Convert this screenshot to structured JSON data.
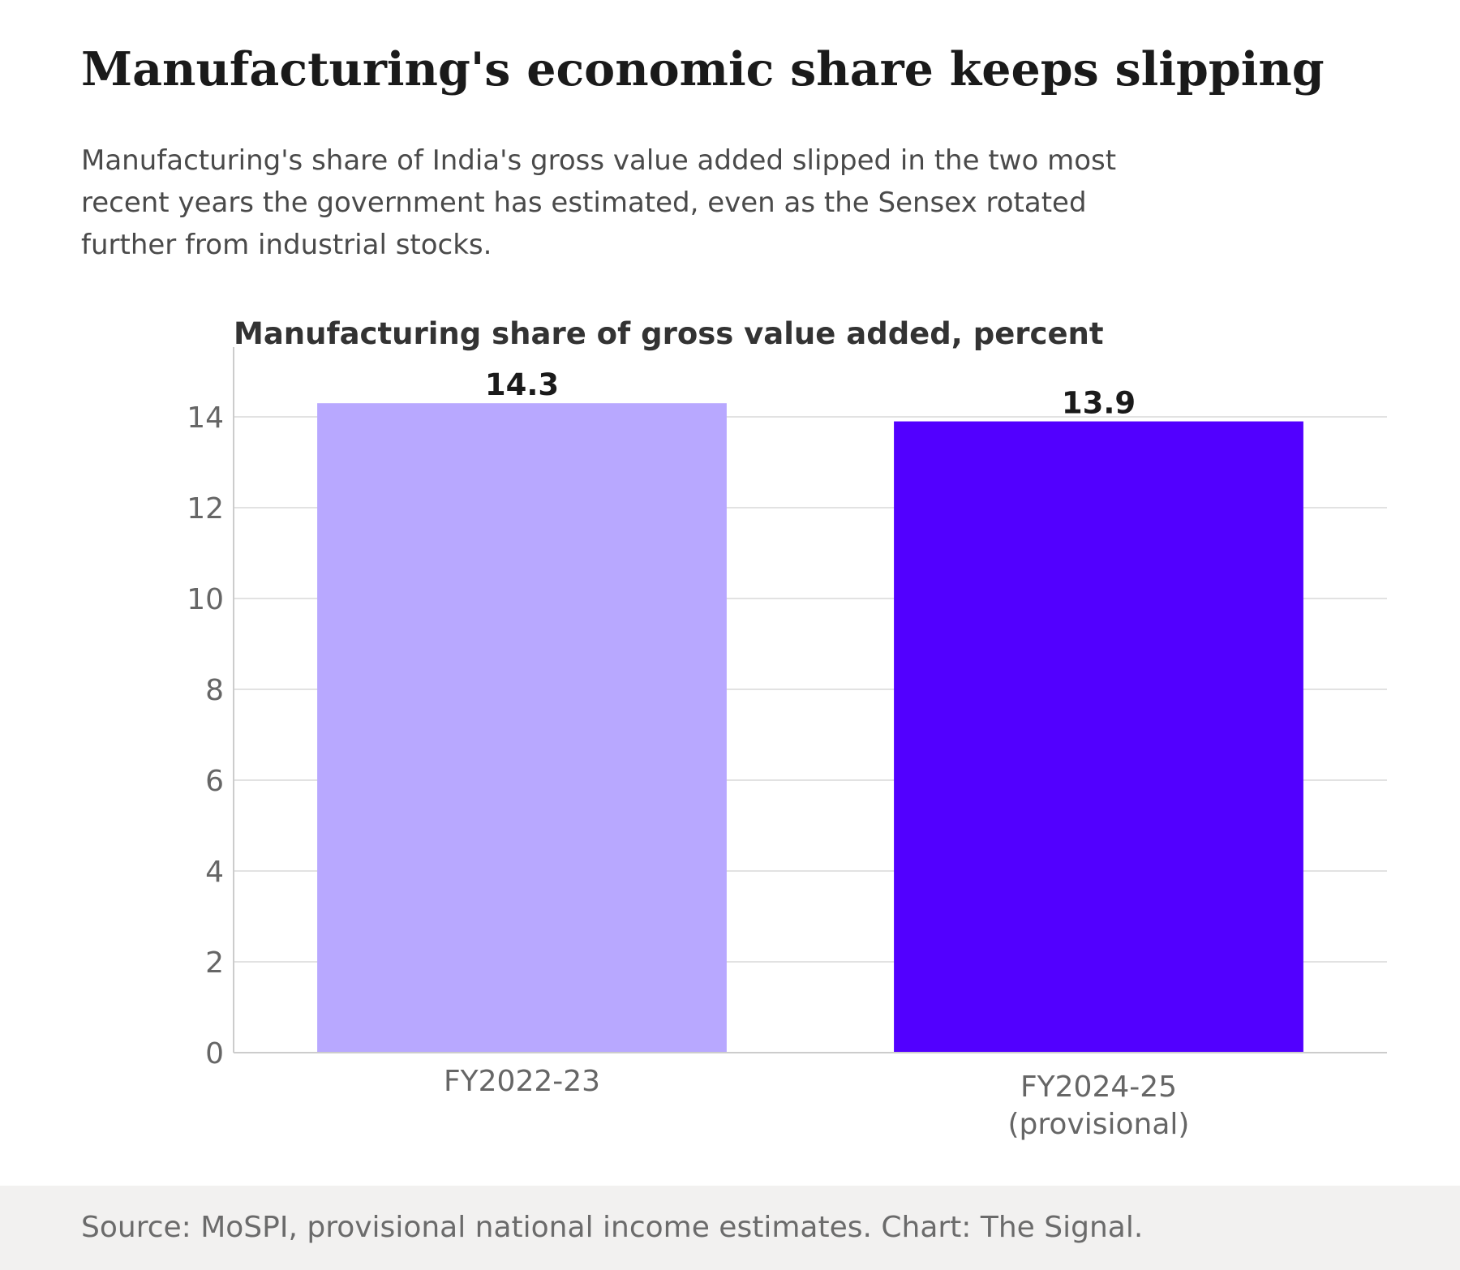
{
  "headline": "Manufacturing's economic share keeps slipping",
  "dek": "Manufacturing's share of India's gross value added slipped in the two most recent years the government has estimated, even as the Sensex rotated further from industrial stocks.",
  "source": "Source: MoSPI, provisional national income estimates. Chart: The Signal.",
  "chart_data": {
    "type": "bar",
    "title": "Manufacturing share of gross value added, percent",
    "xlabel": "",
    "ylabel": "",
    "categories": [
      [
        "FY2022-23"
      ],
      [
        "FY2024-25",
        "(provisional)"
      ]
    ],
    "values": [
      14.3,
      13.9
    ],
    "data_labels": [
      "14.3",
      "13.9"
    ],
    "colors": [
      "#b8a8ff",
      "#5200ff"
    ],
    "ylim": [
      0,
      15
    ],
    "yticks": [
      0,
      2,
      4,
      6,
      8,
      10,
      12,
      14
    ],
    "grid": true,
    "legend": "none"
  }
}
